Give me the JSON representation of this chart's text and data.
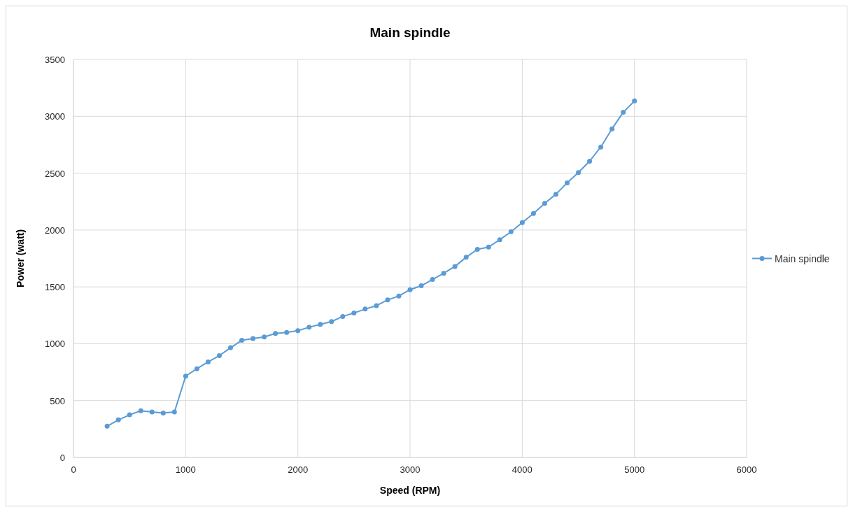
{
  "chart_data": {
    "type": "line",
    "title": "Main spindle",
    "xlabel": "Speed (RPM)",
    "ylabel": "Power (watt)",
    "x": [
      300,
      400,
      500,
      600,
      700,
      800,
      900,
      1000,
      1100,
      1200,
      1300,
      1400,
      1500,
      1600,
      1700,
      1800,
      1900,
      2000,
      2100,
      2200,
      2300,
      2400,
      2500,
      2600,
      2700,
      2800,
      2900,
      3000,
      3100,
      3200,
      3300,
      3400,
      3500,
      3600,
      3700,
      3800,
      3900,
      4000,
      4100,
      4200,
      4300,
      4400,
      4500,
      4600,
      4700,
      4800,
      4900,
      5000
    ],
    "series": [
      {
        "name": "Main spindle",
        "color": "#5b9bd5",
        "values": [
          275,
          330,
          375,
          410,
          400,
          390,
          400,
          715,
          780,
          840,
          895,
          965,
          1030,
          1045,
          1060,
          1090,
          1100,
          1115,
          1145,
          1170,
          1195,
          1240,
          1270,
          1305,
          1335,
          1385,
          1420,
          1475,
          1510,
          1565,
          1620,
          1680,
          1760,
          1830,
          1850,
          1915,
          1985,
          2065,
          2145,
          2235,
          2315,
          2415,
          2505,
          2605,
          2730,
          2890,
          3035,
          3135
        ]
      }
    ],
    "xlim": [
      0,
      6000
    ],
    "xticks": [
      0,
      1000,
      2000,
      3000,
      4000,
      5000,
      6000
    ],
    "ylim": [
      0,
      3500
    ],
    "yticks": [
      0,
      500,
      1000,
      1500,
      2000,
      2500,
      3000,
      3500
    ],
    "grid": true,
    "legend": "right",
    "marker": "circle",
    "line_style": "solid"
  }
}
